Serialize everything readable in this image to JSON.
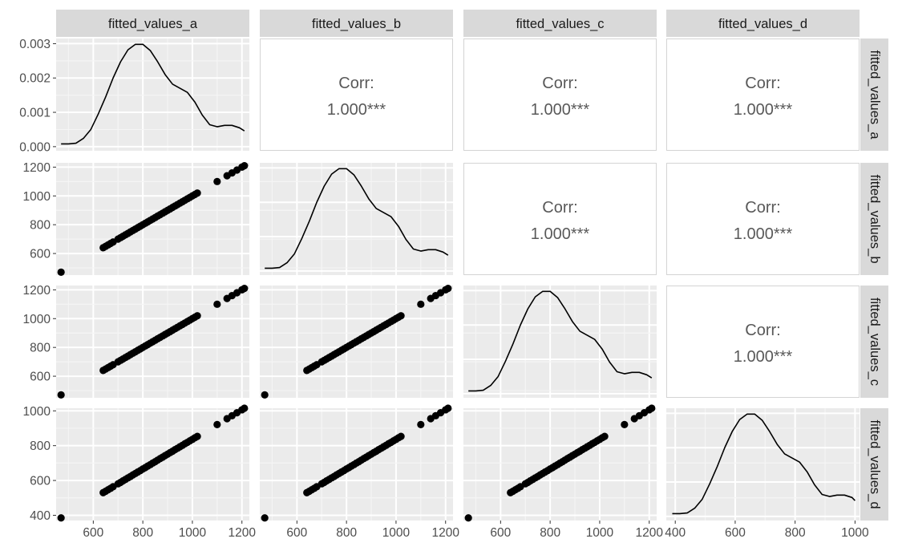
{
  "variables": [
    "fitted_values_a",
    "fitted_values_b",
    "fitted_values_c",
    "fitted_values_d"
  ],
  "corr_label": "Corr:",
  "corr_value": "1.000***",
  "chart_data": {
    "type": "scatter",
    "title": "",
    "grid": true,
    "x_axes": {
      "fitted_values_a": {
        "xlim": [
          450,
          1230
        ],
        "ticks": [
          600,
          800,
          1000,
          1200
        ]
      },
      "fitted_values_b": {
        "xlim": [
          450,
          1230
        ],
        "ticks": [
          600,
          800,
          1000,
          1200
        ]
      },
      "fitted_values_c": {
        "xlim": [
          450,
          1230
        ],
        "ticks": [
          600,
          800,
          1000,
          1200
        ]
      },
      "fitted_values_d": {
        "xlim": [
          370,
          1015
        ],
        "ticks": [
          400,
          600,
          800,
          1000
        ]
      }
    },
    "y_axes": {
      "fitted_values_a": {
        "ylim": [
          -0.00012,
          0.00315
        ],
        "ticks": [
          0.0,
          0.001,
          0.002,
          0.003
        ],
        "tick_labels": [
          "0.000",
          "0.001",
          "0.002",
          "0.003"
        ],
        "density": true
      },
      "fitted_values_b": {
        "ylim": [
          450,
          1230
        ],
        "ticks": [
          600,
          800,
          1000,
          1200
        ]
      },
      "fitted_values_c": {
        "ylim": [
          450,
          1230
        ],
        "ticks": [
          600,
          800,
          1000,
          1200
        ]
      },
      "fitted_values_d": {
        "ylim": [
          370,
          1015
        ],
        "ticks": [
          400,
          600,
          800,
          1000
        ]
      }
    },
    "density_curves": {
      "fitted_values_a": {
        "x": [
          470,
          500,
          530,
          560,
          590,
          620,
          650,
          680,
          710,
          740,
          770,
          800,
          830,
          860,
          890,
          920,
          950,
          980,
          1010,
          1040,
          1070,
          1100,
          1130,
          1160,
          1190,
          1210
        ],
        "y": [
          8e-05,
          8e-05,
          0.0001,
          0.00024,
          0.0005,
          0.00095,
          0.00145,
          0.002,
          0.00247,
          0.00282,
          0.00298,
          0.00298,
          0.0028,
          0.00247,
          0.0021,
          0.00182,
          0.0017,
          0.00158,
          0.0013,
          0.00092,
          0.00064,
          0.00058,
          0.00062,
          0.00062,
          0.00055,
          0.00046
        ]
      },
      "fitted_values_b": {
        "x": [
          470,
          500,
          530,
          560,
          590,
          620,
          650,
          680,
          710,
          740,
          770,
          800,
          830,
          860,
          890,
          920,
          950,
          980,
          1010,
          1040,
          1070,
          1100,
          1130,
          1160,
          1190,
          1210
        ],
        "y": [
          8e-05,
          8e-05,
          0.0001,
          0.00024,
          0.0005,
          0.00095,
          0.00145,
          0.002,
          0.00247,
          0.00282,
          0.00298,
          0.00298,
          0.0028,
          0.00247,
          0.0021,
          0.00182,
          0.0017,
          0.00158,
          0.0013,
          0.00092,
          0.00064,
          0.00058,
          0.00062,
          0.00062,
          0.00055,
          0.00046
        ]
      },
      "fitted_values_c": {
        "x": [
          470,
          500,
          530,
          560,
          590,
          620,
          650,
          680,
          710,
          740,
          770,
          800,
          830,
          860,
          890,
          920,
          950,
          980,
          1010,
          1040,
          1070,
          1100,
          1130,
          1160,
          1190,
          1210
        ],
        "y": [
          8e-05,
          8e-05,
          0.0001,
          0.00024,
          0.0005,
          0.00095,
          0.00145,
          0.002,
          0.00247,
          0.00282,
          0.00298,
          0.00298,
          0.0028,
          0.00247,
          0.0021,
          0.00182,
          0.0017,
          0.00158,
          0.0013,
          0.00092,
          0.00064,
          0.00058,
          0.00062,
          0.00062,
          0.00055,
          0.00046
        ]
      },
      "fitted_values_d": {
        "x": [
          390,
          415,
          440,
          465,
          490,
          515,
          540,
          565,
          590,
          615,
          640,
          665,
          690,
          715,
          740,
          765,
          790,
          815,
          840,
          865,
          890,
          915,
          940,
          965,
          990,
          1000
        ],
        "y": [
          8e-05,
          8e-05,
          0.0001,
          0.00024,
          0.0005,
          0.00095,
          0.00145,
          0.002,
          0.00247,
          0.00282,
          0.00298,
          0.00298,
          0.0028,
          0.00247,
          0.0021,
          0.00182,
          0.0017,
          0.00158,
          0.0013,
          0.00092,
          0.00064,
          0.00058,
          0.00062,
          0.00062,
          0.00055,
          0.00046
        ]
      }
    },
    "points": {
      "fitted_values_a": [
        470,
        640,
        650,
        660,
        670,
        680,
        700,
        710,
        720,
        730,
        740,
        750,
        760,
        770,
        780,
        790,
        800,
        810,
        820,
        830,
        840,
        850,
        860,
        870,
        880,
        890,
        900,
        910,
        920,
        930,
        940,
        950,
        960,
        970,
        980,
        990,
        1000,
        1010,
        1020,
        1100,
        1140,
        1160,
        1180,
        1200,
        1210
      ],
      "fitted_values_b": [
        470,
        640,
        650,
        660,
        670,
        680,
        700,
        710,
        720,
        730,
        740,
        750,
        760,
        770,
        780,
        790,
        800,
        810,
        820,
        830,
        840,
        850,
        860,
        870,
        880,
        890,
        900,
        910,
        920,
        930,
        940,
        950,
        960,
        970,
        980,
        990,
        1000,
        1010,
        1020,
        1100,
        1140,
        1160,
        1180,
        1200,
        1210
      ],
      "fitted_values_c": [
        470,
        640,
        650,
        660,
        670,
        680,
        700,
        710,
        720,
        730,
        740,
        750,
        760,
        770,
        780,
        790,
        800,
        810,
        820,
        830,
        840,
        850,
        860,
        870,
        880,
        890,
        900,
        910,
        920,
        930,
        940,
        950,
        960,
        970,
        980,
        990,
        1000,
        1010,
        1020,
        1100,
        1140,
        1160,
        1180,
        1200,
        1210
      ],
      "fitted_values_d": [
        385,
        530,
        538,
        547,
        555,
        564,
        581,
        589,
        598,
        606,
        615,
        623,
        632,
        640,
        649,
        657,
        666,
        674,
        683,
        691,
        700,
        708,
        717,
        726,
        734,
        743,
        751,
        760,
        768,
        777,
        785,
        794,
        802,
        811,
        819,
        828,
        836,
        845,
        853,
        921,
        955,
        972,
        989,
        1006,
        1015
      ]
    }
  }
}
